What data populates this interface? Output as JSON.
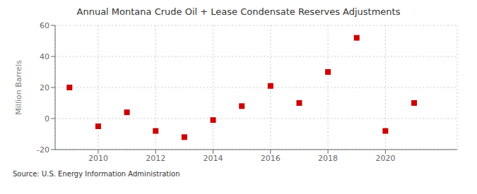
{
  "chart_data": {
    "type": "scatter",
    "title": "Annual Montana Crude Oil + Lease Condensate Reserves Adjustments",
    "ylabel": "Million Barrels",
    "source": "Source: U.S. Energy Information Administration",
    "x": [
      2009,
      2010,
      2011,
      2012,
      2013,
      2014,
      2015,
      2016,
      2017,
      2018,
      2019,
      2020,
      2021
    ],
    "values": [
      20,
      -5,
      4,
      -8,
      -12,
      -1,
      8,
      21,
      10,
      30,
      52,
      -8,
      10
    ],
    "color": "#cc0000",
    "marker": "square",
    "xlim": [
      2008.5,
      2022.5
    ],
    "xticks": [
      2010,
      2012,
      2014,
      2016,
      2018,
      2020
    ],
    "ylim": [
      -20,
      60
    ],
    "yticks": [
      -20,
      0,
      20,
      40,
      60
    ],
    "grid": true
  }
}
